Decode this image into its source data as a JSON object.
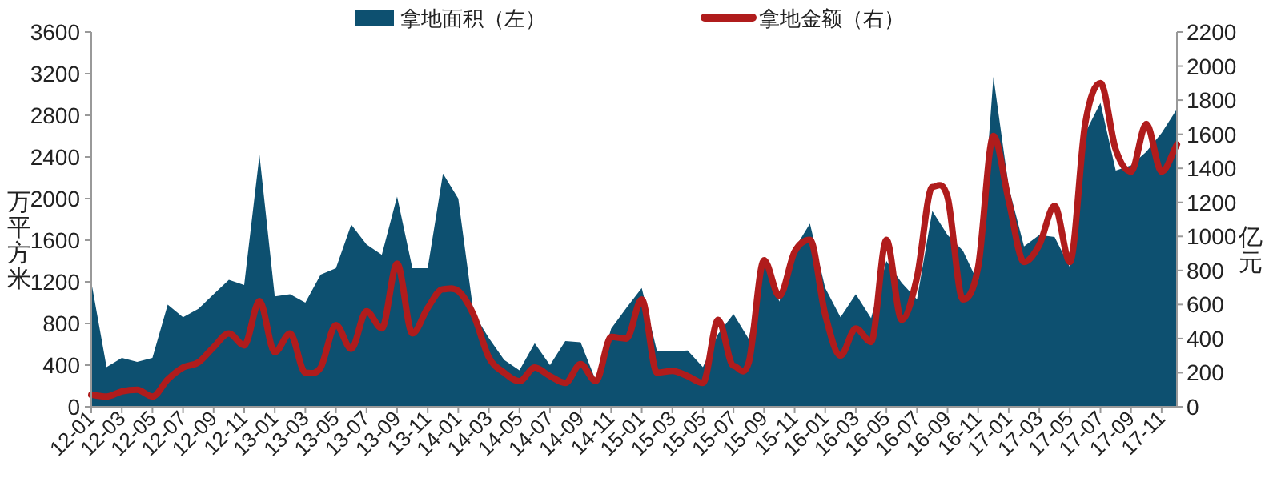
{
  "chart_data": {
    "type": "area",
    "ylabel": "万平方米",
    "y2label": "亿元",
    "legend": "top",
    "categories": [
      "12-01",
      null,
      "12-03",
      null,
      "12-05",
      null,
      "12-07",
      null,
      "12-09",
      null,
      "12-11",
      null,
      "13-01",
      null,
      "13-03",
      null,
      "13-05",
      null,
      "13-07",
      null,
      "13-09",
      null,
      "13-11",
      null,
      "14-01",
      null,
      "14-03",
      null,
      "14-05",
      null,
      "14-07",
      null,
      "14-09",
      null,
      "14-11",
      null,
      "15-01",
      null,
      "15-03",
      null,
      "15-05",
      null,
      "15-07",
      null,
      "15-09",
      null,
      "15-11",
      null,
      "16-01",
      null,
      "16-03",
      null,
      "16-05",
      null,
      "16-07",
      null,
      "16-09",
      null,
      "16-11",
      null,
      "17-01",
      null,
      "17-03",
      null,
      "17-05",
      null,
      "17-07",
      null,
      "17-09",
      null,
      "17-11",
      null
    ],
    "ylim": [
      0,
      3600
    ],
    "yticks": [
      0,
      400,
      800,
      1200,
      1600,
      2000,
      2400,
      2800,
      3200,
      3600
    ],
    "y2lim": [
      0,
      2200
    ],
    "y2ticks": [
      0,
      200,
      400,
      600,
      800,
      1000,
      1200,
      1400,
      1600,
      1800,
      2000,
      2200
    ],
    "series": [
      {
        "name": "拿地面积（左）",
        "color": "#0d5070",
        "values": [
          1200,
          380,
          470,
          430,
          470,
          980,
          860,
          940,
          1080,
          1220,
          1170,
          2420,
          1060,
          1080,
          1000,
          1270,
          1330,
          1750,
          1560,
          1460,
          2020,
          1330,
          1330,
          2240,
          2000,
          900,
          660,
          450,
          350,
          610,
          400,
          630,
          620,
          250,
          750,
          950,
          1140,
          530,
          530,
          540,
          380,
          700,
          890,
          650,
          1420,
          1010,
          1520,
          1760,
          1140,
          860,
          1080,
          850,
          1400,
          1190,
          1030,
          1880,
          1650,
          1500,
          1190,
          3170,
          2110,
          1540,
          1650,
          1630,
          1340,
          2630,
          2920,
          2270,
          2320,
          2450,
          2630,
          2860
        ]
      },
      {
        "name": "拿地金额（右）",
        "type": "line",
        "axis": "y2",
        "color": "#b01c1c",
        "values": [
          70,
          60,
          90,
          100,
          60,
          160,
          230,
          260,
          350,
          430,
          360,
          620,
          320,
          430,
          200,
          230,
          480,
          340,
          560,
          460,
          840,
          430,
          580,
          690,
          680,
          540,
          290,
          200,
          150,
          230,
          180,
          140,
          250,
          150,
          410,
          400,
          630,
          200,
          210,
          180,
          140,
          510,
          240,
          260,
          860,
          650,
          910,
          980,
          540,
          300,
          460,
          380,
          980,
          510,
          760,
          1290,
          1230,
          630,
          820,
          1590,
          1210,
          850,
          950,
          1180,
          850,
          1660,
          1900,
          1510,
          1380,
          1660,
          1380,
          1540
        ]
      }
    ]
  }
}
